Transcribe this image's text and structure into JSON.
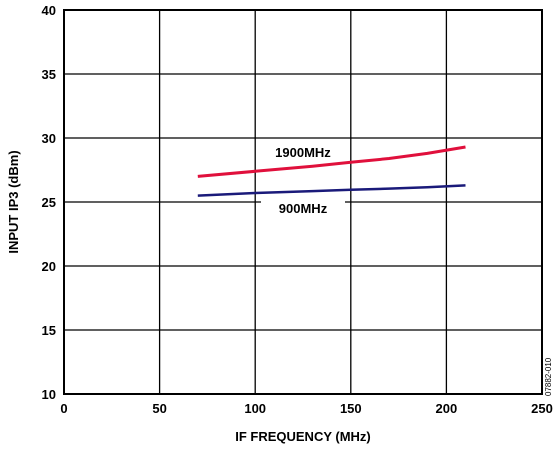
{
  "chart_data": {
    "type": "line",
    "xlabel": "IF FREQUENCY (MHz)",
    "ylabel": "INPUT IP3 (dBm)",
    "xlim": [
      0,
      250
    ],
    "ylim": [
      10,
      40
    ],
    "xticks": [
      0,
      50,
      100,
      150,
      200,
      250
    ],
    "yticks": [
      10,
      15,
      20,
      25,
      30,
      35,
      40
    ],
    "grid": true,
    "figure_id": "07882-010",
    "series": [
      {
        "name": "1900MHz",
        "color": "#e0103c",
        "x": [
          70,
          100,
          130,
          150,
          170,
          190,
          210
        ],
        "y": [
          27.0,
          27.4,
          27.8,
          28.1,
          28.4,
          28.8,
          29.3
        ]
      },
      {
        "name": "900MHz",
        "color": "#1a1a7a",
        "x": [
          70,
          100,
          130,
          150,
          170,
          190,
          210
        ],
        "y": [
          25.5,
          25.7,
          25.85,
          25.95,
          26.05,
          26.15,
          26.3
        ]
      }
    ]
  }
}
